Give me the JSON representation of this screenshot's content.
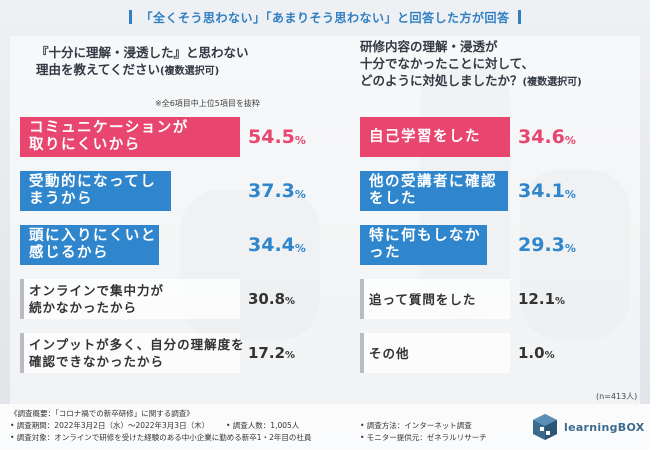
{
  "header": {
    "text": "「全くそう思わない」「あまりそう思わない」と回答した方が回答"
  },
  "left": {
    "title": "『十分に理解・浸透した』と思わない\n理由を教えてください",
    "title_suffix": "(複数選択可)",
    "note": "※全6項目中上位5項目を抜粋"
  },
  "right": {
    "title": "研修内容の理解・浸透が\n十分でなかったことに対して、\nどのように対処しましたか？",
    "title_suffix": "(複数選択可)"
  },
  "sample": "(n=413人)",
  "footer": {
    "survey": "《調査概要：「コロナ禍での新卒研修」に関する調査》",
    "period": "• 調査期間：2022年3月2日（水）〜2022年3月3日（木）",
    "people": "• 調査人数：1,005人",
    "method": "• 調査方法：インターネット調査",
    "target": "• 調査対象：オンラインで研修を受けた経験のある中小企業に勤める新卒1・2年目の社員",
    "provider": "• モニター提供元：ゼネラルリサーチ"
  },
  "logo": {
    "text": "learningBOX",
    "icon": "box-logo-icon"
  },
  "colors": {
    "pink": "#e8466f",
    "blue": "#2f86cc",
    "gray": "#b9bcc0"
  },
  "chart_data": [
    {
      "type": "bar",
      "orientation": "horizontal",
      "unit": "%",
      "categories": [
        "コミュニケーションが\n取りにくいから",
        "受動的になってしまうから",
        "頭に入りにくいと感じるから",
        "オンラインで集中力が\n続かなかったから",
        "インプットが多く、自分の理解度を\n確認できなかったから"
      ],
      "values": [
        54.5,
        37.3,
        34.4,
        30.8,
        17.2
      ],
      "value_labels": [
        "54.5",
        "37.3",
        "34.4",
        "30.8",
        "17.2"
      ]
    },
    {
      "type": "bar",
      "orientation": "horizontal",
      "unit": "%",
      "categories": [
        "自己学習をした",
        "他の受講者に確認をした",
        "特に何もしなかった",
        "追って質問をした",
        "その他"
      ],
      "values": [
        34.6,
        34.1,
        29.3,
        12.1,
        1.0
      ],
      "value_labels": [
        "34.6",
        "34.1",
        "29.3",
        "12.1",
        "1.0"
      ]
    }
  ]
}
